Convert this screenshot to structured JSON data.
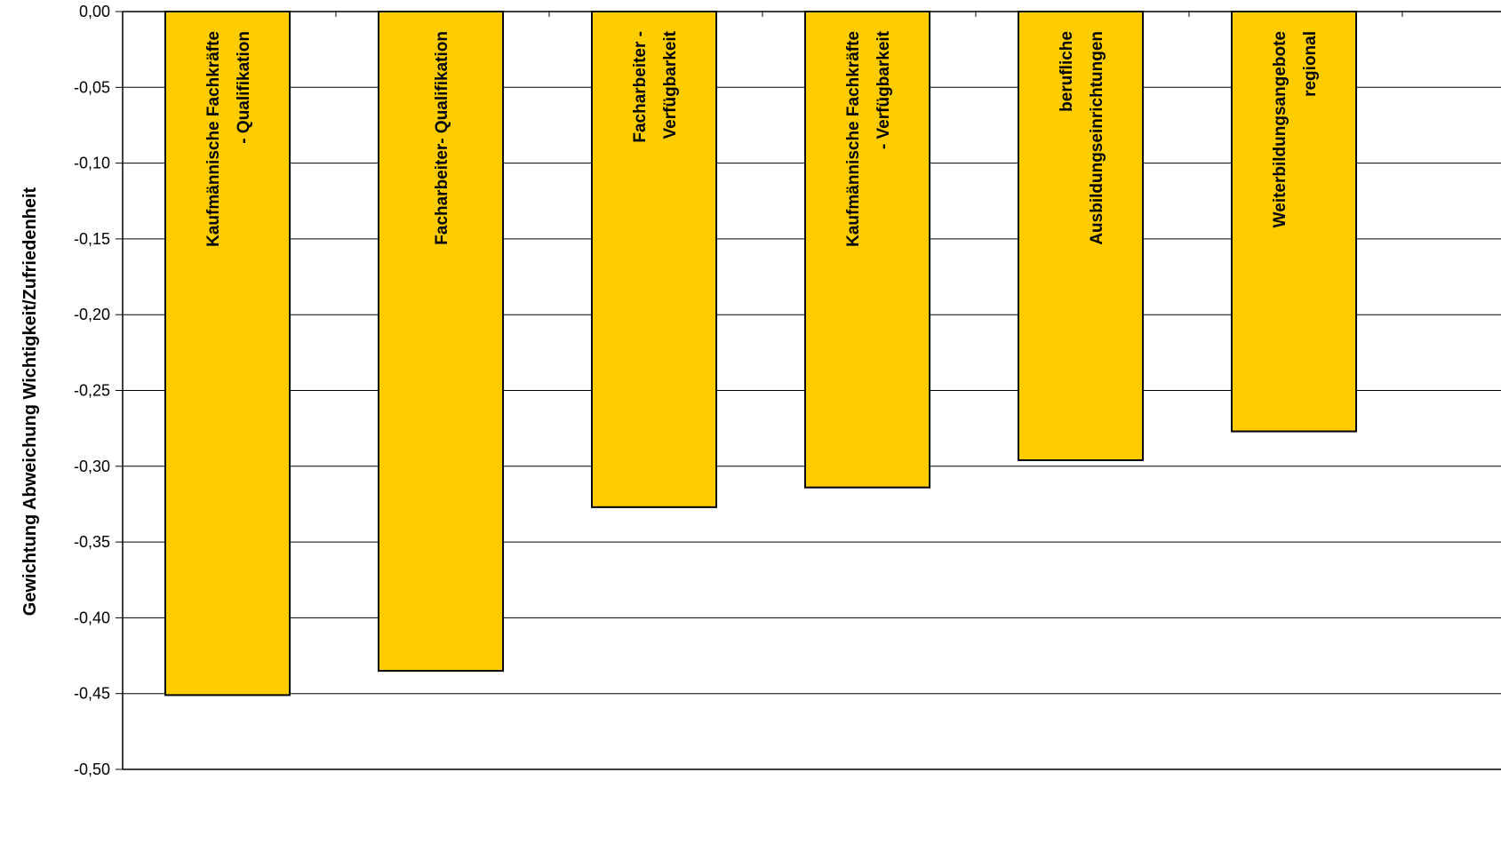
{
  "chart_data": {
    "type": "bar",
    "title": "",
    "xlabel": "",
    "ylabel": "Gewichtung Abweichung Wichtigkeit/Zufriedenheit",
    "ylim": [
      -0.5,
      0.0
    ],
    "yticks": [
      0.0,
      -0.05,
      -0.1,
      -0.15,
      -0.2,
      -0.25,
      -0.3,
      -0.35,
      -0.4,
      -0.45,
      -0.5
    ],
    "ytick_labels": [
      "0,00",
      "-0,05",
      "-0,10",
      "-0,15",
      "-0,20",
      "-0,25",
      "-0,30",
      "-0,35",
      "-0,40",
      "-0,45",
      "-0,50"
    ],
    "grid": true,
    "categories": [
      [
        "Kaufmännische Fachkräfte",
        "- Qualifikation"
      ],
      [
        "Facharbeiter- Qualifikation"
      ],
      [
        "Facharbeiter -",
        "Verfügbarkeit"
      ],
      [
        "Kaufmännische Fachkräfte",
        "- Verfügbarkeit"
      ],
      [
        "berufliche",
        "Ausbildungseinrichtungen"
      ],
      [
        "Weiterbildungsangebote",
        "regional"
      ]
    ],
    "values": [
      -0.451,
      -0.435,
      -0.327,
      -0.314,
      -0.296,
      -0.277
    ],
    "colors": {
      "bar": "#FFCC00",
      "bar_edge": "#000000",
      "grid": "#000000"
    }
  }
}
